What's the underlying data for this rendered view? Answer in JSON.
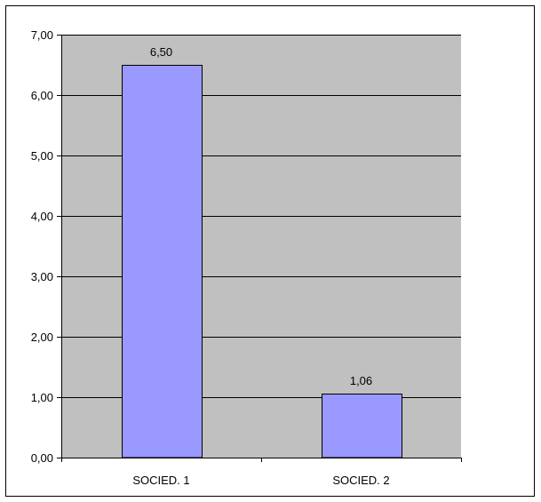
{
  "chart_data": {
    "type": "bar",
    "categories": [
      "SOCIED. 1",
      "SOCIED. 2"
    ],
    "values": [
      6.5,
      1.06
    ],
    "data_labels": [
      "6,50",
      "1,06"
    ],
    "title": "",
    "xlabel": "",
    "ylabel": "",
    "ylim": [
      0,
      7
    ],
    "y_ticks": [
      0,
      1,
      2,
      3,
      4,
      5,
      6,
      7
    ],
    "y_tick_labels": [
      "0,00",
      "1,00",
      "2,00",
      "3,00",
      "4,00",
      "5,00",
      "6,00",
      "7,00"
    ],
    "grid": true,
    "legend": false,
    "colors": {
      "plot_background": "#c0c0c0",
      "bar_fill": "#9999ff",
      "bar_stroke": "#000000",
      "gridline": "#000000"
    }
  }
}
